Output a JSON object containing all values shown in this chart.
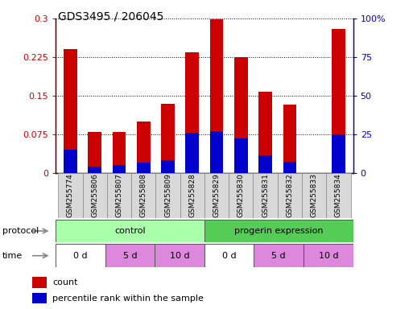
{
  "title": "GDS3495 / 206045",
  "samples": [
    "GSM255774",
    "GSM255806",
    "GSM255807",
    "GSM255808",
    "GSM255809",
    "GSM255828",
    "GSM255829",
    "GSM255830",
    "GSM255831",
    "GSM255832",
    "GSM255833",
    "GSM255834"
  ],
  "red_values": [
    0.24,
    0.08,
    0.08,
    0.1,
    0.135,
    0.235,
    0.298,
    0.225,
    0.158,
    0.133,
    0.0,
    0.28
  ],
  "blue_values_left_scale": [
    0.045,
    0.012,
    0.016,
    0.02,
    0.025,
    0.078,
    0.082,
    0.068,
    0.035,
    0.022,
    0.0,
    0.075
  ],
  "ylim_left": [
    0,
    0.3
  ],
  "ylim_right": [
    0,
    100
  ],
  "yticks_left": [
    0,
    0.075,
    0.15,
    0.225,
    0.3
  ],
  "yticks_right": [
    0,
    25,
    50,
    75,
    100
  ],
  "ytick_labels_left": [
    "0",
    "0.075",
    "0.15",
    "0.225",
    "0.3"
  ],
  "ytick_labels_right": [
    "0",
    "25",
    "50",
    "75",
    "100%"
  ],
  "red_color": "#cc0000",
  "blue_color": "#0000cc",
  "protocol_groups": [
    {
      "label": "control",
      "start": 0,
      "end": 6,
      "color": "#aaffaa"
    },
    {
      "label": "progerin expression",
      "start": 6,
      "end": 12,
      "color": "#55cc55"
    }
  ],
  "time_groups": [
    {
      "label": "0 d",
      "start": 0,
      "end": 2,
      "color": "#ffffff"
    },
    {
      "label": "5 d",
      "start": 2,
      "end": 4,
      "color": "#dd88dd"
    },
    {
      "label": "10 d",
      "start": 4,
      "end": 6,
      "color": "#dd88dd"
    },
    {
      "label": "0 d",
      "start": 6,
      "end": 8,
      "color": "#ffffff"
    },
    {
      "label": "5 d",
      "start": 8,
      "end": 10,
      "color": "#dd88dd"
    },
    {
      "label": "10 d",
      "start": 10,
      "end": 12,
      "color": "#dd88dd"
    }
  ],
  "legend_items": [
    {
      "label": "count",
      "color": "#cc0000"
    },
    {
      "label": "percentile rank within the sample",
      "color": "#0000cc"
    }
  ],
  "bar_width": 0.55,
  "bg_color": "#ffffff"
}
